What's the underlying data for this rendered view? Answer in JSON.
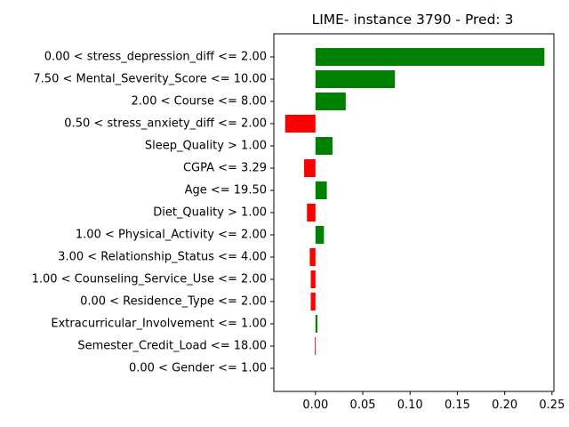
{
  "chart_data": {
    "type": "bar",
    "orientation": "horizontal",
    "title": "LIME- instance 3790 - Pred: 3",
    "xlabel": "",
    "ylabel": "",
    "xlim": [
      -0.044,
      0.252
    ],
    "xticks": [
      0.0,
      0.05,
      0.1,
      0.15,
      0.2,
      0.25
    ],
    "xtick_labels": [
      "0.00",
      "0.05",
      "0.10",
      "0.15",
      "0.20",
      "0.25"
    ],
    "grid": false,
    "legend": "none",
    "positive_color": "#008000",
    "negative_color": "#ff0000",
    "categories": [
      "0.00 < stress_depression_diff <= 2.00",
      "7.50 < Mental_Severity_Score <= 10.00",
      "2.00 < Course <= 8.00",
      "0.50 < stress_anxiety_diff <= 2.00",
      "Sleep_Quality > 1.00",
      "CGPA <= 3.29",
      "Age <= 19.50",
      "Diet_Quality > 1.00",
      "1.00 < Physical_Activity <= 2.00",
      "3.00 < Relationship_Status <= 4.00",
      "1.00 < Counseling_Service_Use <= 2.00",
      "0.00 < Residence_Type <= 2.00",
      "Extracurricular_Involvement <= 1.00",
      "Semester_Credit_Load <= 18.00",
      "0.00 < Gender <= 1.00"
    ],
    "values": [
      0.242,
      0.084,
      0.032,
      -0.032,
      0.018,
      -0.012,
      0.012,
      -0.009,
      0.009,
      -0.006,
      -0.005,
      -0.005,
      0.002,
      -0.0008,
      0.0
    ]
  }
}
